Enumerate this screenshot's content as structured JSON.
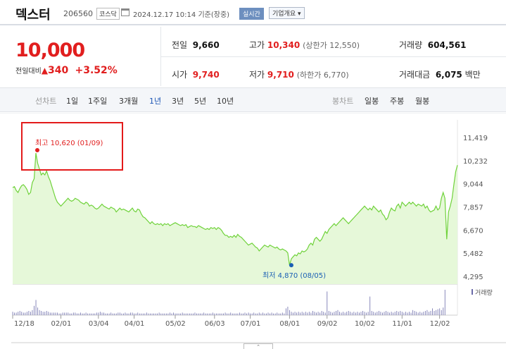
{
  "stock": {
    "name": "덱스터",
    "code": "206560",
    "market": "코스닥",
    "datetime": "2024.12.17 10:14",
    "status": "기준(장중)",
    "realtime": "실시간",
    "overview": "기업개요 ▾",
    "price": "10,000",
    "change_label": "전일대비",
    "change": "340",
    "change_pct": "+3.52%"
  },
  "quotes": {
    "prev": {
      "label": "전일",
      "value": "9,660"
    },
    "high": {
      "label": "고가",
      "value": "10,340",
      "note": "(상한가 12,550)"
    },
    "volume": {
      "label": "거래량",
      "value": "604,561"
    },
    "open": {
      "label": "시가",
      "value": "9,740"
    },
    "low": {
      "label": "저가",
      "value": "9,710",
      "note": "(하한가 6,770)"
    },
    "amount": {
      "label": "거래대금",
      "value": "6,075",
      "unit": "백만"
    }
  },
  "tabs": {
    "line_label": "선차트",
    "periods": [
      "1일",
      "1주일",
      "3개월",
      "1년",
      "3년",
      "5년",
      "10년"
    ],
    "selected": "1년",
    "candle_label": "봉차트",
    "candles": [
      "일봉",
      "주봉",
      "월봉"
    ]
  },
  "colors": {
    "up": "#e11e1e",
    "down": "#1a5fb4",
    "line": "#6fd23a",
    "fill": "#e6f8d9"
  },
  "chart_data": {
    "type": "area",
    "y_ticks": [
      "11,419",
      "10,232",
      "9,044",
      "7,857",
      "6,670",
      "5,482",
      "4,295"
    ],
    "y_tick_values": [
      11419,
      10232,
      9044,
      7857,
      6670,
      5482,
      4295
    ],
    "ylim": [
      4295,
      11419
    ],
    "x_ticks": [
      "12/18",
      "02/01",
      "03/04",
      "04/01",
      "05/02",
      "06/03",
      "07/01",
      "08/01",
      "09/02",
      "10/02",
      "11/01",
      "12/02"
    ],
    "x_tick_index": [
      0,
      27,
      48,
      68,
      91,
      113,
      133,
      155,
      176,
      197,
      218,
      239
    ],
    "max_label": "최고 10,620 (01/09)",
    "max": {
      "index": 13,
      "value": 10620
    },
    "min_label": "최저 4,870 (08/05)",
    "min": {
      "index": 156,
      "value": 4870
    },
    "volume_label": "거래량",
    "series": [
      {
        "values": [
          8850,
          8900,
          8700,
          8600,
          8800,
          8950,
          9000,
          8900,
          8750,
          8500,
          8600,
          9100,
          9300,
          10620,
          10100,
          9800,
          9500,
          9600,
          9500,
          9700,
          9400,
          9200,
          8900,
          8600,
          8300,
          8100,
          8000,
          7900,
          8000,
          8100,
          8200,
          8300,
          8200,
          8150,
          8200,
          8300,
          8250,
          8200,
          8100,
          8050,
          8000,
          8100,
          8050,
          7900,
          7950,
          7900,
          7800,
          7750,
          7800,
          7900,
          8000,
          7900,
          7850,
          7800,
          7750,
          7850,
          7800,
          7750,
          7600,
          7700,
          7800,
          7700,
          7750,
          7700,
          7650,
          7600,
          7700,
          7800,
          7650,
          7600,
          7750,
          7700,
          7500,
          7350,
          7300,
          7200,
          7100,
          7000,
          7100,
          7000,
          6950,
          7000,
          6950,
          7000,
          6900,
          7000,
          6950,
          7000,
          6900,
          6950,
          7000,
          7050,
          7000,
          6950,
          6900,
          6950,
          6900,
          6950,
          6800,
          6850,
          6900,
          6850,
          6850,
          6800,
          6900,
          6850,
          6800,
          6750,
          6700,
          6750,
          6700,
          6800,
          6750,
          6800,
          6700,
          6800,
          6750,
          6650,
          6500,
          6400,
          6400,
          6300,
          6350,
          6300,
          6400,
          6300,
          6450,
          6350,
          6300,
          6200,
          6100,
          6000,
          5900,
          5950,
          6000,
          5900,
          5800,
          5750,
          5600,
          5700,
          5800,
          5900,
          5850,
          5800,
          5900,
          5850,
          5800,
          5750,
          5800,
          5700,
          5650,
          5700,
          5650,
          5600,
          5500,
          4870,
          5200,
          5300,
          5400,
          5350,
          5500,
          5450,
          5600,
          5550,
          5600,
          5700,
          5900,
          6000,
          5900,
          6200,
          6300,
          6200,
          6100,
          6200,
          6400,
          6600,
          6500,
          6700,
          6800,
          6900,
          7000,
          6900,
          7000,
          7100,
          7200,
          7300,
          7200,
          7100,
          7000,
          7100,
          7200,
          7300,
          7400,
          7500,
          7600,
          7700,
          7800,
          7900,
          7800,
          7700,
          7800,
          7700,
          7900,
          7800,
          7700,
          7600,
          7700,
          7500,
          7400,
          7200,
          7300,
          7600,
          7800,
          7700,
          7650,
          7900,
          8000,
          7800,
          8100,
          8000,
          7900,
          8000,
          8100,
          8000,
          8100,
          8000,
          7900,
          8000,
          7950,
          7900,
          8000,
          7800,
          7900,
          7700,
          7600,
          7650,
          7700,
          7900,
          7700,
          7800,
          8300,
          8600,
          8300,
          6200,
          7600,
          7900,
          8300,
          9000,
          9660,
          10000
        ]
      }
    ],
    "volume": [
      4,
      3,
      3,
      4,
      5,
      4,
      3,
      3,
      4,
      5,
      4,
      6,
      11,
      18,
      9,
      6,
      5,
      4,
      4,
      5,
      4,
      3,
      3,
      3,
      3,
      3,
      2,
      2,
      3,
      3,
      3,
      3,
      2,
      2,
      3,
      3,
      2,
      2,
      3,
      2,
      2,
      3,
      2,
      2,
      2,
      2,
      2,
      3,
      3,
      4,
      3,
      3,
      2,
      2,
      2,
      3,
      2,
      2,
      2,
      3,
      3,
      2,
      2,
      3,
      2,
      2,
      3,
      3,
      2,
      2,
      3,
      2,
      2,
      2,
      2,
      3,
      2,
      2,
      2,
      2,
      2,
      2,
      3,
      2,
      2,
      2,
      2,
      2,
      3,
      2,
      3,
      2,
      2,
      2,
      2,
      3,
      2,
      2,
      2,
      2,
      2,
      2,
      3,
      2,
      2,
      2,
      2,
      3,
      2,
      2,
      2,
      2,
      3,
      2,
      2,
      2,
      2,
      2,
      2,
      3,
      2,
      2,
      3,
      2,
      2,
      2,
      2,
      3,
      2,
      2,
      3,
      2,
      3,
      2,
      2,
      3,
      2,
      2,
      3,
      2,
      3,
      2,
      2,
      3,
      2,
      3,
      2,
      2,
      3,
      2,
      2,
      3,
      2,
      8,
      10,
      6,
      4,
      3,
      4,
      3,
      4,
      3,
      4,
      3,
      4,
      3,
      4,
      3,
      5,
      4,
      3,
      4,
      3,
      5,
      4,
      3,
      28,
      5,
      4,
      3,
      4,
      5,
      6,
      4,
      3,
      4,
      3,
      4,
      5,
      4,
      3,
      4,
      3,
      4,
      3,
      4,
      5,
      4,
      3,
      4,
      22,
      5,
      4,
      3,
      4,
      5,
      4,
      3,
      4,
      5,
      4,
      3,
      4,
      3,
      4,
      5,
      4,
      5,
      4,
      3,
      4,
      3,
      4,
      3,
      6,
      5,
      4,
      3,
      4,
      3,
      4,
      5,
      6,
      4,
      5,
      8,
      5,
      6,
      7,
      8,
      6,
      9,
      30
    ]
  }
}
